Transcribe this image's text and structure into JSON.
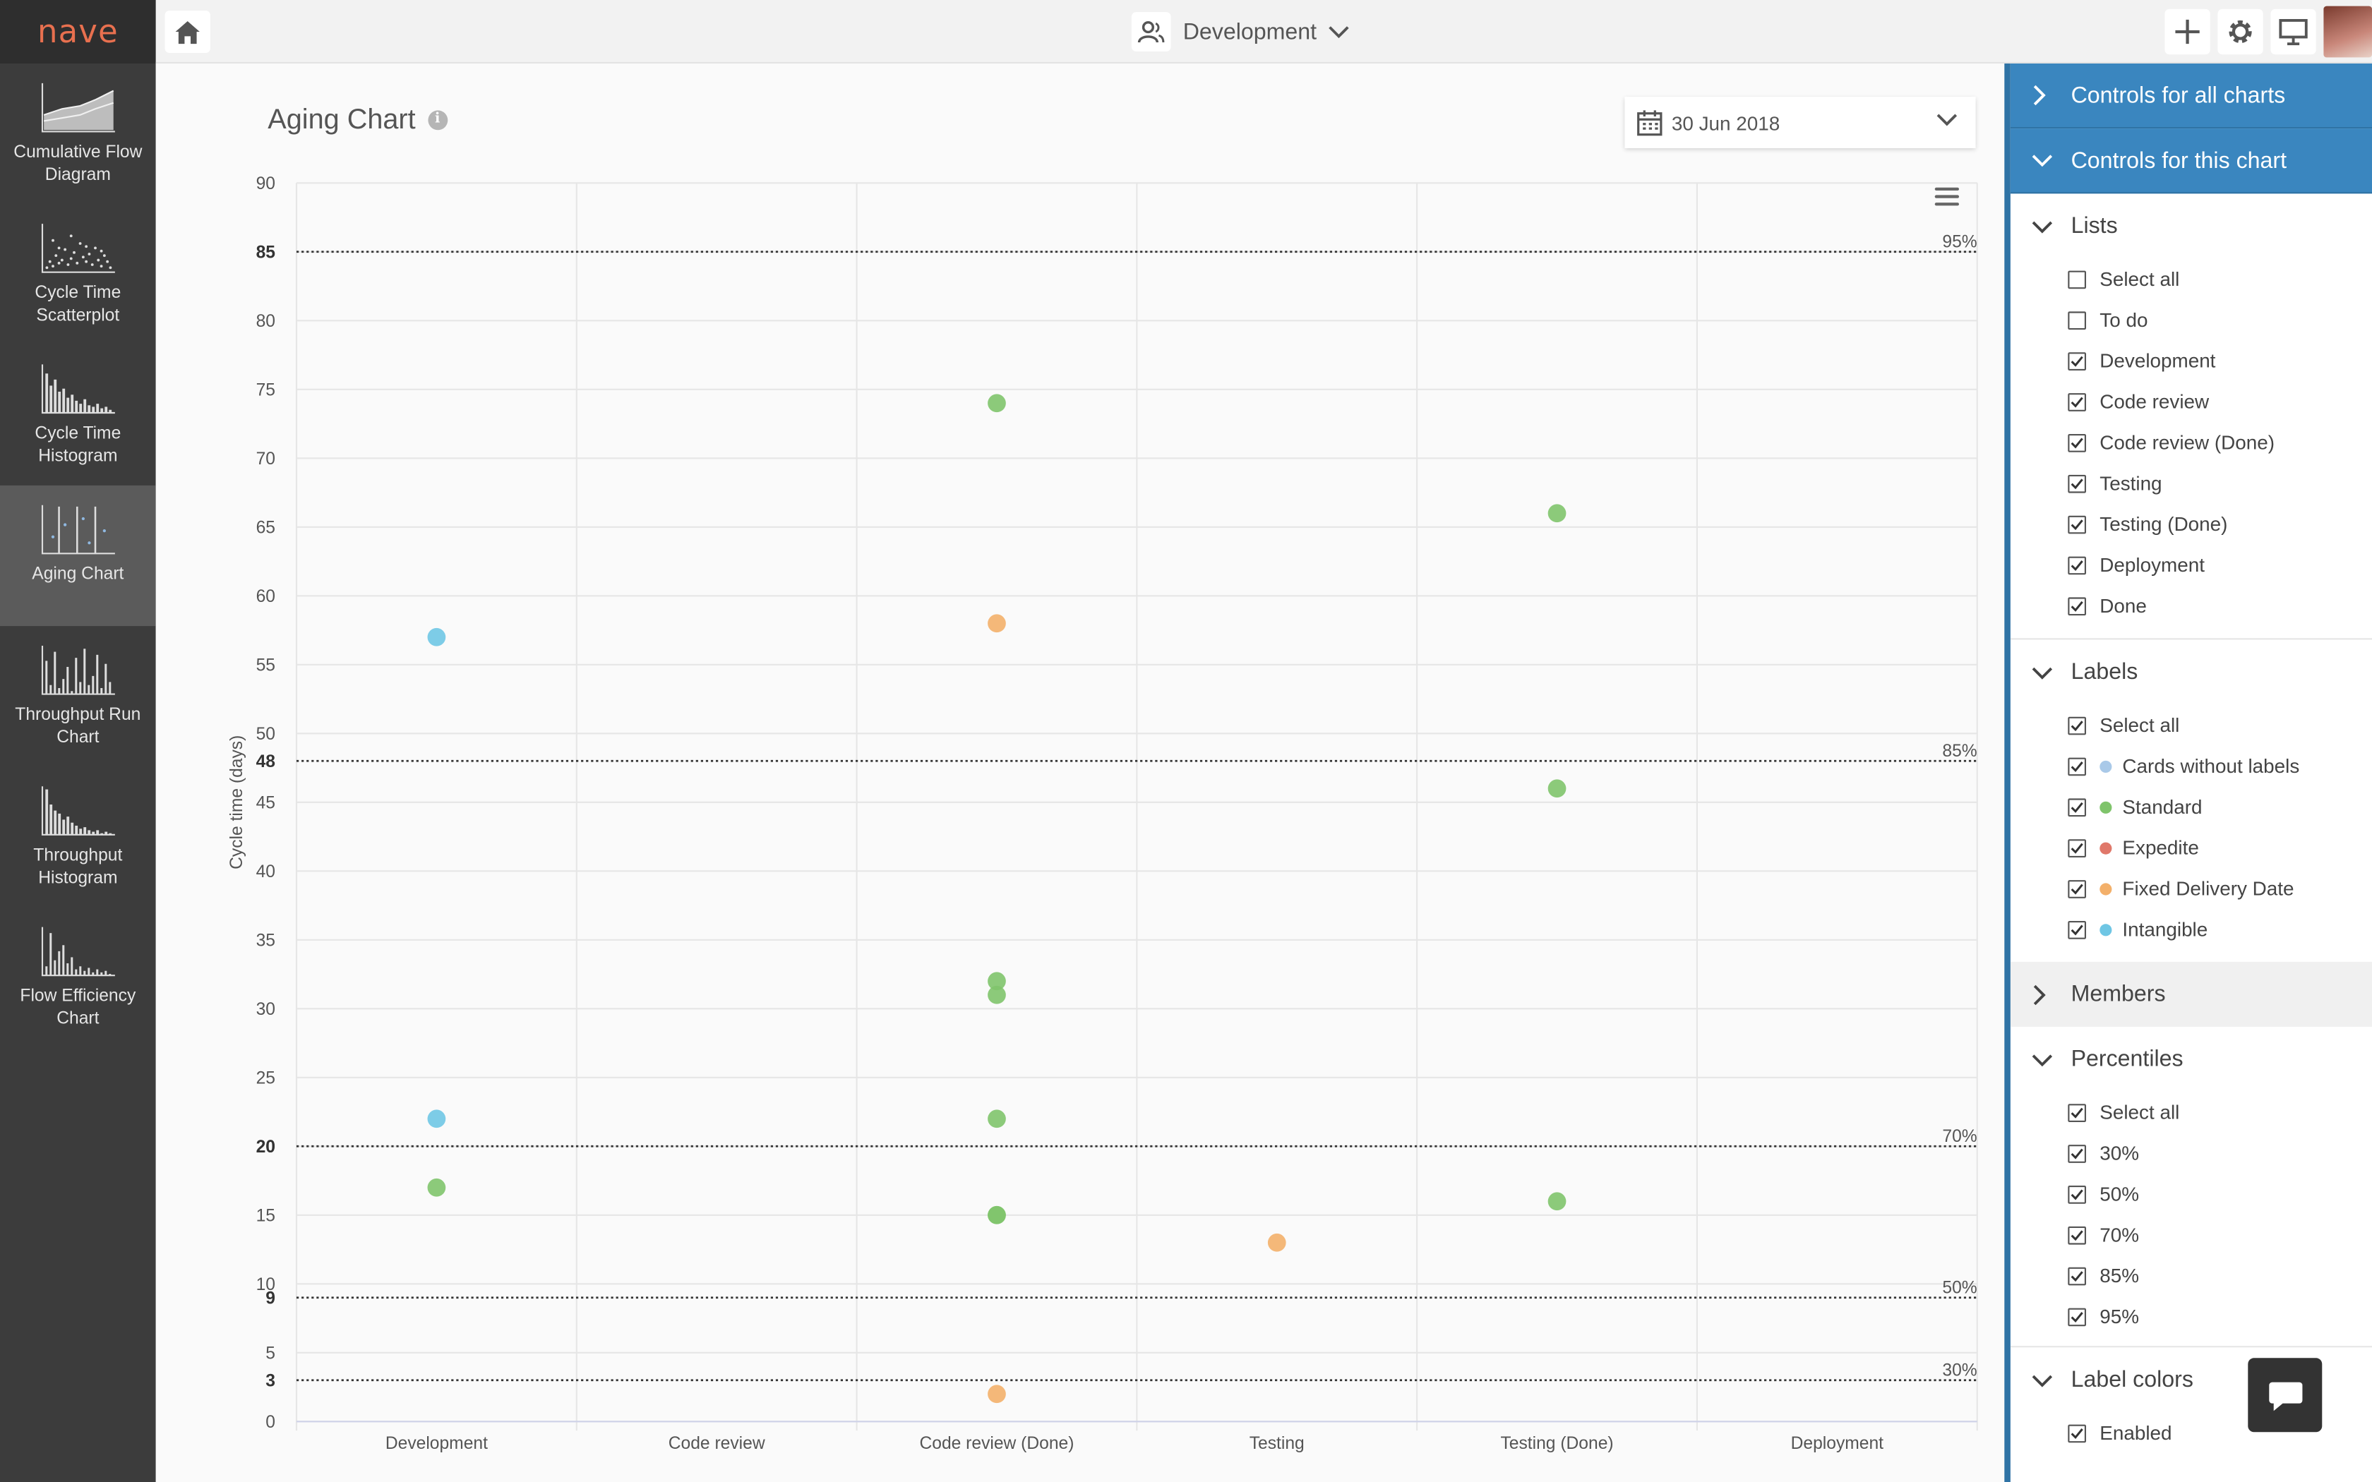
{
  "app": {
    "logo": "nave"
  },
  "sidebar": {
    "items": [
      {
        "label": "Cumulative Flow Diagram",
        "icon": "cumulative-flow-icon"
      },
      {
        "label": "Cycle Time Scatterplot",
        "icon": "scatterplot-icon"
      },
      {
        "label": "Cycle Time Histogram",
        "icon": "histogram-icon"
      },
      {
        "label": "Aging Chart",
        "icon": "aging-chart-icon",
        "active": true
      },
      {
        "label": "Throughput Run Chart",
        "icon": "run-chart-icon"
      },
      {
        "label": "Throughput Histogram",
        "icon": "throughput-histogram-icon"
      },
      {
        "label": "Flow Efficiency Chart",
        "icon": "flow-efficiency-icon"
      }
    ]
  },
  "header": {
    "board_name": "Development"
  },
  "main": {
    "title": "Aging Chart",
    "date": "30 Jun 2018"
  },
  "panel": {
    "all_charts": "Controls for all charts",
    "this_chart": "Controls for this chart",
    "lists": {
      "title": "Lists",
      "items": [
        {
          "label": "Select all",
          "checked": false
        },
        {
          "label": "To do",
          "checked": false
        },
        {
          "label": "Development",
          "checked": true
        },
        {
          "label": "Code review",
          "checked": true
        },
        {
          "label": "Code review (Done)",
          "checked": true
        },
        {
          "label": "Testing",
          "checked": true
        },
        {
          "label": "Testing (Done)",
          "checked": true
        },
        {
          "label": "Deployment",
          "checked": true
        },
        {
          "label": "Done",
          "checked": true
        }
      ]
    },
    "labels": {
      "title": "Labels",
      "items": [
        {
          "label": "Select all",
          "checked": true,
          "color": null
        },
        {
          "label": "Cards without labels",
          "checked": true,
          "color": "#a9c9e8"
        },
        {
          "label": "Standard",
          "checked": true,
          "color": "#7fc46b"
        },
        {
          "label": "Expedite",
          "checked": true,
          "color": "#e0786a"
        },
        {
          "label": "Fixed Delivery Date",
          "checked": true,
          "color": "#f3b06a"
        },
        {
          "label": "Intangible",
          "checked": true,
          "color": "#6fc6e4"
        }
      ]
    },
    "members": {
      "title": "Members"
    },
    "percentiles": {
      "title": "Percentiles",
      "items": [
        {
          "label": "Select all",
          "checked": true
        },
        {
          "label": "30%",
          "checked": true
        },
        {
          "label": "50%",
          "checked": true
        },
        {
          "label": "70%",
          "checked": true
        },
        {
          "label": "85%",
          "checked": true
        },
        {
          "label": "95%",
          "checked": true
        }
      ]
    },
    "label_colors": {
      "title": "Label colors",
      "items": [
        {
          "label": "Enabled",
          "checked": true
        }
      ]
    }
  },
  "chart_data": {
    "type": "scatter",
    "title": "",
    "ylabel": "Cycle time (days)",
    "xlabel": "",
    "categories": [
      "Development",
      "Code review",
      "Code review (Done)",
      "Testing",
      "Testing (Done)",
      "Deployment"
    ],
    "ylim": [
      0,
      90
    ],
    "yticks": [
      "0",
      "5",
      "10",
      "15",
      "20",
      "25",
      "30",
      "35",
      "40",
      "45",
      "50",
      "55",
      "60",
      "65",
      "70",
      "75",
      "80",
      "85",
      "90"
    ],
    "grid": true,
    "percentiles": [
      {
        "label": "95%",
        "value": 85
      },
      {
        "label": "85%",
        "value": 48
      },
      {
        "label": "70%",
        "value": 20
      },
      {
        "label": "50%",
        "value": 9
      },
      {
        "label": "30%",
        "value": 3
      }
    ],
    "series": [
      {
        "name": "Intangible",
        "color": "#6fc6e4",
        "points": [
          {
            "category": "Development",
            "y": 57
          },
          {
            "category": "Development",
            "y": 22
          }
        ]
      },
      {
        "name": "Standard",
        "color": "#7fc46b",
        "points": [
          {
            "category": "Development",
            "y": 17
          },
          {
            "category": "Code review (Done)",
            "y": 74
          },
          {
            "category": "Code review (Done)",
            "y": 32
          },
          {
            "category": "Code review (Done)",
            "y": 31
          },
          {
            "category": "Code review (Done)",
            "y": 22
          },
          {
            "category": "Code review (Done)",
            "y": 15
          },
          {
            "category": "Code review (Done)",
            "y": 15
          },
          {
            "category": "Testing (Done)",
            "y": 66
          },
          {
            "category": "Testing (Done)",
            "y": 46
          },
          {
            "category": "Testing (Done)",
            "y": 16
          }
        ]
      },
      {
        "name": "Fixed Delivery Date",
        "color": "#f3b06a",
        "points": [
          {
            "category": "Code review (Done)",
            "y": 58
          },
          {
            "category": "Code review (Done)",
            "y": 2
          },
          {
            "category": "Testing",
            "y": 13
          }
        ]
      }
    ]
  }
}
